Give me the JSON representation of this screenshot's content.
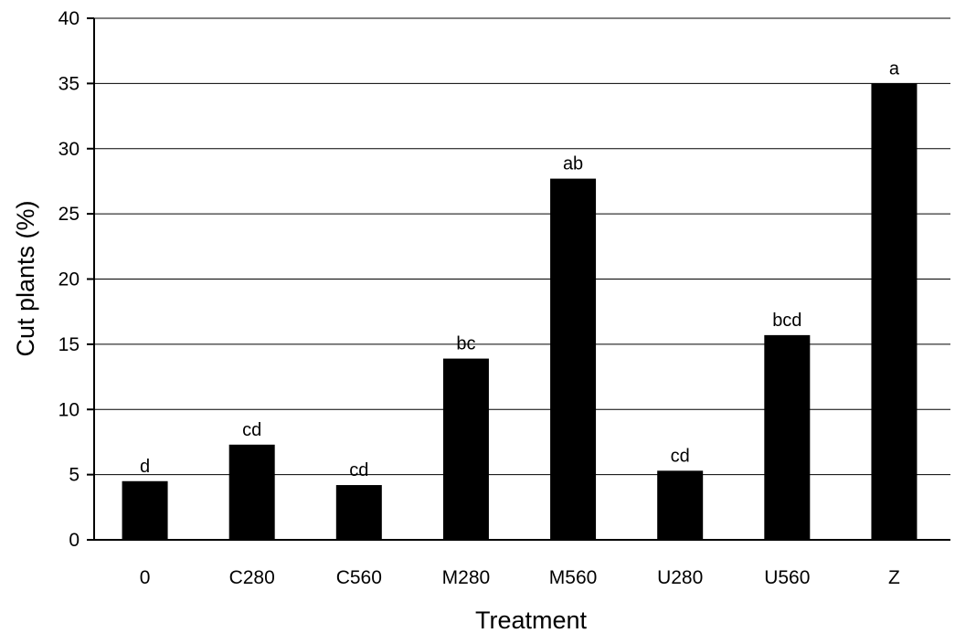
{
  "chart_data": {
    "type": "bar",
    "title": "",
    "xlabel": "Treatment",
    "ylabel": "Cut plants (%)",
    "ylim": [
      0,
      40
    ],
    "yticks": [
      0,
      5,
      10,
      15,
      20,
      25,
      30,
      35,
      40
    ],
    "grid": true,
    "categories": [
      "0",
      "C280",
      "C560",
      "M280",
      "M560",
      "U280",
      "U560",
      "Z"
    ],
    "values": [
      4.5,
      7.3,
      4.2,
      13.9,
      27.7,
      5.3,
      15.7,
      35.0
    ],
    "annotations": [
      "d",
      "cd",
      "cd",
      "bc",
      "ab",
      "cd",
      "bcd",
      "a"
    ],
    "bar_color": "#000000",
    "grid_color": "#000000"
  }
}
